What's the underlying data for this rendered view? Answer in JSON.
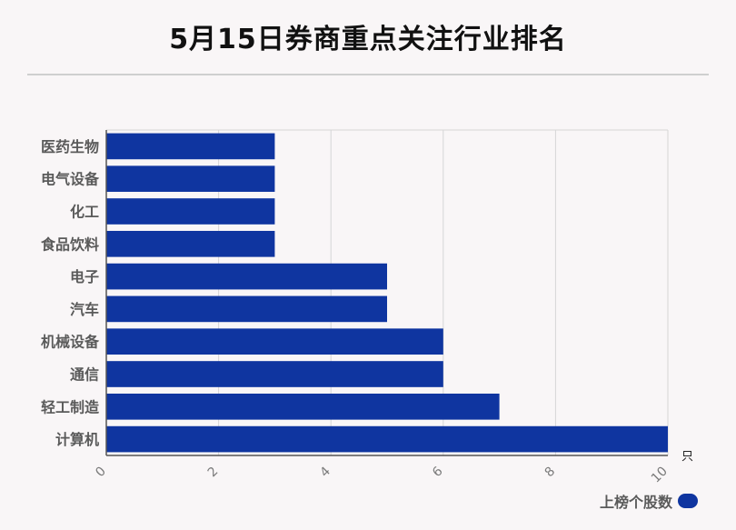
{
  "title": "5月15日券商重点关注行业排名",
  "colors": {
    "bar": "#0f35a0",
    "grid": "#d6d6d6",
    "background": "#f9f6f7"
  },
  "chart_data": {
    "type": "bar",
    "orientation": "horizontal",
    "categories": [
      "医药生物",
      "电气设备",
      "化工",
      "食品饮料",
      "电子",
      "汽车",
      "机械设备",
      "通信",
      "轻工制造",
      "计算机"
    ],
    "series": [
      {
        "name": "上榜个股数",
        "values": [
          3,
          3,
          3,
          3,
          5,
          5,
          6,
          6,
          7,
          10
        ]
      }
    ],
    "xlim": [
      0,
      10
    ],
    "xticks": [
      0,
      2,
      4,
      6,
      8,
      10
    ],
    "xunit": "只",
    "grid": true,
    "legend_position": "bottom-right"
  }
}
